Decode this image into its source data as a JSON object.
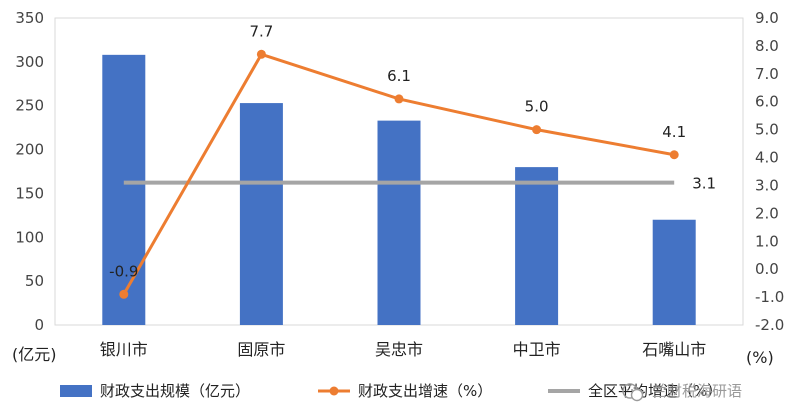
{
  "chart_data": {
    "type": "bar",
    "categories": [
      "银川市",
      "固原市",
      "吴忠市",
      "中卫市",
      "石嘴山市"
    ],
    "y_left": {
      "label": "(亿元)",
      "min": 0,
      "max": 350,
      "step": 50
    },
    "y_right": {
      "label": "(%)",
      "min": -2.0,
      "max": 9.0,
      "step": 1.0
    },
    "series": [
      {
        "name": "财政支出规模（亿元）",
        "kind": "bar",
        "axis": "left",
        "color": "#4472C4",
        "values": [
          308,
          253,
          233,
          180,
          120
        ]
      },
      {
        "name": "财政支出增速（%）",
        "kind": "line",
        "axis": "right",
        "color": "#ED7D31",
        "values": [
          -0.9,
          7.7,
          6.1,
          5.0,
          4.1
        ],
        "labels": [
          "-0.9",
          "7.7",
          "6.1",
          "5.0",
          "4.1"
        ]
      },
      {
        "name": "全区平均增速（%）",
        "kind": "line",
        "axis": "right",
        "color": "#A5A5A5",
        "values": [
          3.1,
          3.1,
          3.1,
          3.1,
          3.1
        ],
        "end_label": "3.1"
      }
    ],
    "legend_position": "bottom",
    "grid": false
  },
  "watermark": {
    "text": "兰财税海研语",
    "icon": "wechat-icon"
  }
}
